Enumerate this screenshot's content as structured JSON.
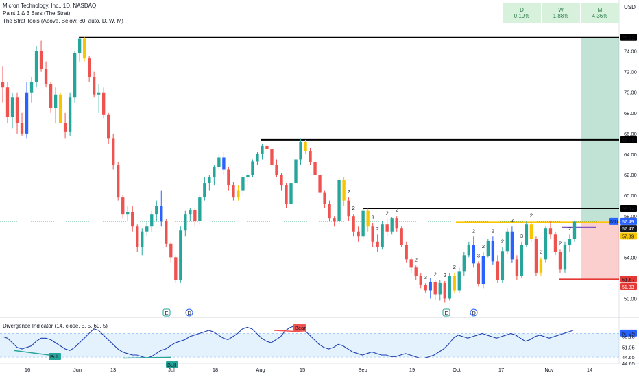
{
  "header": {
    "title": "Micron Technology, Inc., 1D, NASDAQ",
    "indicator1": "Paint 1 & 3 Bars (The Strat)",
    "indicator2": "The Strat Tools (Above, Below, 80, auto, D, W, M)",
    "currency": "USD"
  },
  "strat_table": [
    {
      "label": "D",
      "value": "0.19%"
    },
    {
      "label": "W",
      "value": "1.88%"
    },
    {
      "label": "M",
      "value": "4.36%"
    }
  ],
  "divergence": {
    "title": "Divergence Indicator (14, close, 5, 5, 60, 5)",
    "bull_label": "Bull",
    "bear_label": "Bear"
  },
  "event_markers": [
    "E",
    "D",
    "E",
    "D"
  ],
  "chart_data": [
    {
      "type": "candlestick",
      "title": "Micron Technology, Inc., 1D, NASDAQ",
      "x_ticks": [
        "16",
        "Jun",
        "13",
        "Jul",
        "18",
        "Aug",
        "15",
        "Sep",
        "19",
        "Oct",
        "17",
        "Nov",
        "14"
      ],
      "y_ticks": [
        50,
        52,
        54,
        56,
        58,
        60,
        62,
        64,
        66,
        68,
        70,
        72,
        74
      ],
      "ylim": [
        49.3,
        76.7
      ],
      "levels": [
        {
          "value": 75.32,
          "label": "75.32",
          "color": "#000000"
        },
        {
          "value": 65.4,
          "label": "65.40",
          "color": "#000000"
        },
        {
          "value": 58.74,
          "label": "58.74",
          "color": "#000000"
        },
        {
          "value": 51.87,
          "label": "51.87",
          "color": "#e53935"
        }
      ],
      "price_tags": [
        {
          "value": 75.36,
          "label": "75.36",
          "color": "#4caf87"
        },
        {
          "value": 57.49,
          "label": "57.49",
          "color": "#2962ff"
        },
        {
          "value": 57.47,
          "label": "57.47",
          "color": "#131722"
        },
        {
          "value": 57.39,
          "label": "57.39",
          "color": "#f7c600"
        },
        {
          "value": 51.83,
          "label": "51.83",
          "color": "#e53935"
        }
      ],
      "mu_tag": "MU",
      "candles": [
        [
          71,
          72.5,
          69,
          70.5
        ],
        [
          70.5,
          71,
          67,
          67.6
        ],
        [
          67.6,
          70,
          66.5,
          69.5
        ],
        [
          69.5,
          70,
          66,
          67
        ],
        [
          67,
          68,
          65.8,
          66
        ],
        [
          66,
          71,
          65.5,
          70
        ],
        [
          70,
          71.5,
          69,
          71
        ],
        [
          71,
          74.5,
          70.5,
          74
        ],
        [
          74,
          75,
          72,
          72.3
        ],
        [
          72.3,
          73,
          70.5,
          70.8
        ],
        [
          70.8,
          71,
          68,
          68.5
        ],
        [
          68.5,
          70.5,
          67,
          69.8
        ],
        [
          69.8,
          70,
          67,
          67
        ],
        [
          67,
          68,
          65.5,
          66.2
        ],
        [
          66.2,
          70,
          65.8,
          69.5
        ],
        [
          69.5,
          74,
          69,
          73.8
        ],
        [
          73.8,
          75.4,
          73,
          75.2
        ],
        [
          75.2,
          75.4,
          73,
          73.3
        ],
        [
          73.3,
          73.5,
          71,
          71.5
        ],
        [
          71.5,
          72,
          69.5,
          69.8
        ],
        [
          69.8,
          70.8,
          68,
          70
        ],
        [
          70,
          70.5,
          67.5,
          67.8
        ],
        [
          67.8,
          68,
          65,
          65.5
        ],
        [
          65.5,
          66,
          62.5,
          63
        ],
        [
          63,
          63.2,
          59.5,
          59.8
        ],
        [
          59.8,
          60,
          57.8,
          58.2
        ],
        [
          58.2,
          59,
          57.5,
          58.4
        ],
        [
          58.4,
          59,
          56.5,
          57
        ],
        [
          57,
          57.2,
          54.5,
          55
        ],
        [
          55,
          56.8,
          54.2,
          56.5
        ],
        [
          56.5,
          57.5,
          56,
          57
        ],
        [
          57,
          58.5,
          56.5,
          58.2
        ],
        [
          58.2,
          59.5,
          57.5,
          59
        ],
        [
          59,
          60.5,
          57,
          57.5
        ],
        [
          57.5,
          57.7,
          55,
          55.3
        ],
        [
          55.3,
          55.5,
          53.5,
          54
        ],
        [
          54,
          54.2,
          51.5,
          51.8
        ],
        [
          51.8,
          57,
          51.5,
          56.6
        ],
        [
          56.6,
          58.5,
          56,
          58.2
        ],
        [
          58.2,
          58.8,
          57.5,
          58.6
        ],
        [
          58.6,
          58.8,
          57,
          57.5
        ],
        [
          57.5,
          60,
          57.2,
          59.8
        ],
        [
          59.8,
          61.8,
          59.5,
          61.2
        ],
        [
          61.2,
          62,
          60.5,
          61.8
        ],
        [
          61.8,
          63,
          61,
          62.8
        ],
        [
          62.8,
          64,
          62.5,
          63.7
        ],
        [
          63.7,
          64.2,
          62,
          62.5
        ],
        [
          62.5,
          62.8,
          60.5,
          61
        ],
        [
          61,
          61.3,
          59.5,
          59.8
        ],
        [
          59.8,
          61,
          59.5,
          60.5
        ],
        [
          60.5,
          62,
          60,
          61.8
        ],
        [
          61.8,
          62.5,
          61,
          62
        ],
        [
          62,
          63.5,
          61.8,
          63.3
        ],
        [
          63.3,
          64.2,
          63,
          64
        ],
        [
          64,
          65,
          63.5,
          64.8
        ],
        [
          64.8,
          65.5,
          64.2,
          64.5
        ],
        [
          64.5,
          64.8,
          62.5,
          63
        ],
        [
          63,
          63.5,
          61.8,
          62
        ],
        [
          62,
          62.2,
          60.5,
          61
        ],
        [
          61,
          61.2,
          58.8,
          59.2
        ],
        [
          59.2,
          61.5,
          59,
          61.2
        ],
        [
          61.2,
          64,
          61,
          63.5
        ],
        [
          63.5,
          65.5,
          63,
          65.2
        ],
        [
          65.2,
          65.4,
          64,
          64.3
        ],
        [
          64.3,
          64.6,
          63,
          63.2
        ],
        [
          63.2,
          63.5,
          61.5,
          62
        ],
        [
          62,
          62.2,
          60,
          60.3
        ],
        [
          60.3,
          60.5,
          58.8,
          59.2
        ],
        [
          59.2,
          59.5,
          57.5,
          57.8
        ],
        [
          57.8,
          58,
          57,
          57.5
        ],
        [
          57.5,
          61.8,
          57.2,
          61.5
        ],
        [
          61.5,
          61.8,
          59,
          59.5
        ],
        [
          59.5,
          59.8,
          57.5,
          58
        ],
        [
          58,
          58.2,
          56,
          56.5
        ],
        [
          56.5,
          57,
          55.5,
          56
        ],
        [
          56,
          58.8,
          55.8,
          58.5
        ],
        [
          58.5,
          58.7,
          56.5,
          57
        ],
        [
          57,
          57.3,
          55,
          55.5
        ],
        [
          55.5,
          56.2,
          54.5,
          55
        ],
        [
          55,
          57.5,
          54.8,
          57.2
        ],
        [
          57.2,
          57.7,
          56,
          56.5
        ],
        [
          56.5,
          57.9,
          56.2,
          57.8
        ],
        [
          57.8,
          58,
          56.5,
          56.8
        ],
        [
          56.8,
          57,
          55,
          55.2
        ],
        [
          55.2,
          55.5,
          53.5,
          53.8
        ],
        [
          53.8,
          54,
          52.5,
          53
        ],
        [
          53,
          53.2,
          51.8,
          52.2
        ],
        [
          52.2,
          52.5,
          51,
          51.3
        ],
        [
          51.3,
          51.5,
          50.5,
          50.8
        ],
        [
          50.8,
          52,
          50,
          51.6
        ],
        [
          51.6,
          51.8,
          49.9,
          50.4
        ],
        [
          50.4,
          51.8,
          49.8,
          51.5
        ],
        [
          51.5,
          51.7,
          49.6,
          50
        ],
        [
          50,
          52.5,
          49.8,
          52.2
        ],
        [
          52.2,
          52.5,
          50.5,
          50.8
        ],
        [
          50.8,
          53,
          50.5,
          52.6
        ],
        [
          52.6,
          54.5,
          52.2,
          54.2
        ],
        [
          54.2,
          55.5,
          54,
          55.2
        ],
        [
          55.2,
          56,
          53,
          53.4
        ],
        [
          53.4,
          53.6,
          51.2,
          51.4
        ],
        [
          51.4,
          54.5,
          51,
          54.1
        ],
        [
          54.1,
          55.8,
          54,
          55.6
        ],
        [
          55.6,
          56,
          53.3,
          53.6
        ],
        [
          53.6,
          54.2,
          51.5,
          51.8
        ],
        [
          51.8,
          55,
          51.5,
          54.6
        ],
        [
          54.6,
          56.8,
          54.3,
          56.5
        ],
        [
          56.5,
          57,
          53.5,
          53.8
        ],
        [
          53.8,
          54.2,
          51.8,
          52.2
        ],
        [
          52.2,
          55.5,
          52,
          55.2
        ],
        [
          55.2,
          57.5,
          55,
          57.2
        ],
        [
          57.2,
          57.5,
          55.5,
          55.8
        ],
        [
          55.8,
          56,
          52.2,
          52.5
        ],
        [
          52.5,
          54,
          52.2,
          53.8
        ],
        [
          53.8,
          57,
          53.5,
          56.8
        ],
        [
          56.8,
          57.5,
          55.8,
          56.2
        ],
        [
          56.2,
          56.5,
          54.2,
          54.5
        ],
        [
          54.5,
          54.8,
          52.5,
          52.8
        ],
        [
          52.8,
          55.5,
          52.5,
          55.2
        ],
        [
          55.2,
          56.2,
          54.5,
          55.8
        ],
        [
          55.8,
          57.5,
          55.5,
          57.45
        ]
      ],
      "divergence_series": {
        "name": "Divergence Indicator (14, close, 5, 5, 60, 5)",
        "y_ticks_labels": [
          "60.29",
          "58.18",
          "51.05",
          "44.65",
          "44.65"
        ],
        "ylim": [
          42,
          66
        ],
        "values": [
          58,
          57,
          54,
          51,
          50,
          51,
          52,
          55,
          57,
          57,
          56,
          54,
          52,
          50,
          49,
          51,
          54,
          57,
          60,
          63,
          62,
          59,
          56,
          53,
          50,
          48,
          47,
          46,
          46,
          45,
          44,
          45,
          47,
          49,
          50,
          52,
          54,
          55,
          56,
          58,
          59,
          60,
          61,
          62,
          61,
          59,
          57,
          56,
          58,
          60,
          63,
          64,
          63,
          60,
          57,
          55,
          54,
          56,
          58,
          62,
          64,
          65,
          64,
          62,
          59,
          56,
          53,
          51,
          50,
          51,
          53,
          52,
          50,
          48,
          47,
          46,
          47,
          48,
          47,
          46,
          46,
          45,
          45,
          46,
          47,
          46,
          45,
          44,
          44,
          45,
          46,
          48,
          50,
          53,
          57,
          59,
          58,
          57,
          58,
          59,
          60,
          59,
          58,
          57,
          58,
          59,
          60,
          59,
          57,
          55,
          56,
          58,
          59,
          58,
          57,
          58,
          59,
          60,
          61,
          62
        ]
      }
    }
  ]
}
